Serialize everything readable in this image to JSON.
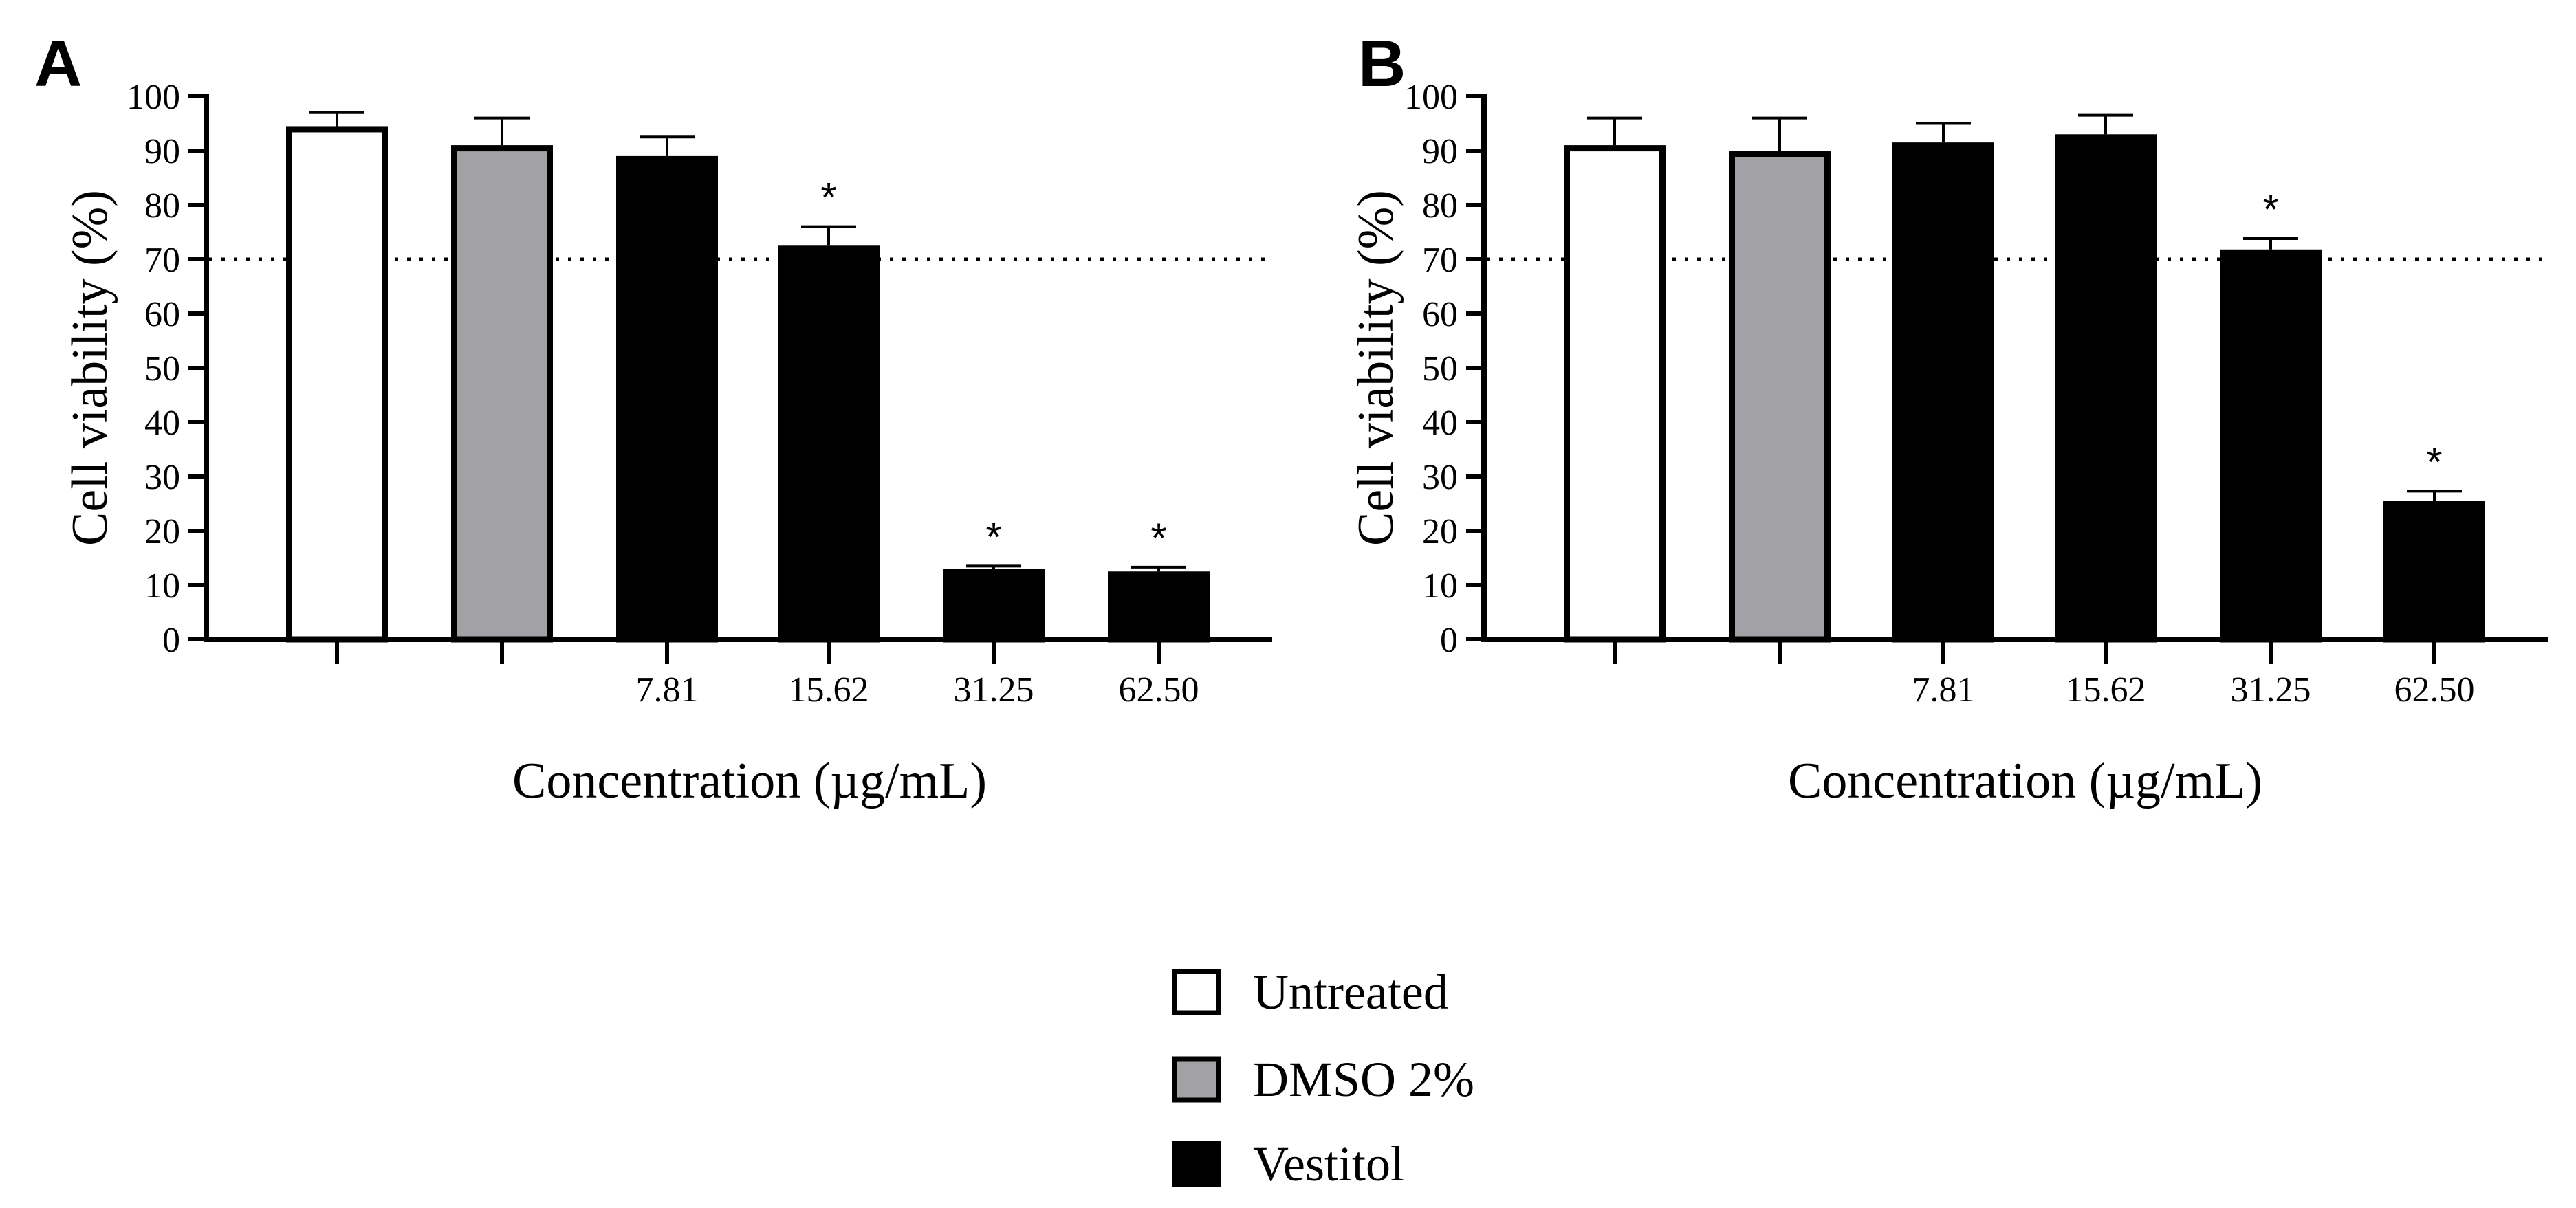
{
  "chart_data": [
    {
      "type": "bar",
      "panel": "A",
      "title": "",
      "xlabel": "Concentration (µg/mL)",
      "ylabel": "Cell viability (%)",
      "ylim": [
        0,
        100
      ],
      "yticks": [
        0,
        10,
        20,
        30,
        40,
        50,
        60,
        70,
        80,
        90,
        100
      ],
      "reference_line": 70,
      "categories": [
        "",
        "",
        "7.81",
        "15.62",
        "31.25",
        "62.50"
      ],
      "groups": [
        "Untreated",
        "DMSO 2%",
        "Vestitol",
        "Vestitol",
        "Vestitol",
        "Vestitol"
      ],
      "values": [
        94.5,
        91,
        89,
        72.5,
        13,
        12.5
      ],
      "errors": [
        2.5,
        5,
        3.5,
        3.5,
        0.5,
        0.8
      ],
      "significance": [
        "",
        "",
        "",
        "*",
        "*",
        "*"
      ]
    },
    {
      "type": "bar",
      "panel": "B",
      "title": "",
      "xlabel": "Concentration (µg/mL)",
      "ylabel": "Cell viability (%)",
      "ylim": [
        0,
        100
      ],
      "yticks": [
        0,
        10,
        20,
        30,
        40,
        50,
        60,
        70,
        80,
        90,
        100
      ],
      "reference_line": 70,
      "categories": [
        "",
        "",
        "7.81",
        "15.62",
        "31.25",
        "62.50"
      ],
      "groups": [
        "Untreated",
        "DMSO 2%",
        "Vestitol",
        "Vestitol",
        "Vestitol",
        "Vestitol"
      ],
      "values": [
        91,
        90,
        91.5,
        93,
        71.8,
        25.5
      ],
      "errors": [
        5,
        6,
        3.5,
        3.5,
        2,
        1.8
      ],
      "significance": [
        "",
        "",
        "",
        "",
        "*",
        "*"
      ]
    }
  ],
  "legend": {
    "placement": "bottom-center",
    "items": [
      {
        "key": "Untreated",
        "label": "Untreated",
        "fill": "#ffffff"
      },
      {
        "key": "DMSO 2%",
        "label": "DMSO 2%",
        "fill": "#a2a2a6"
      },
      {
        "key": "Vestitol",
        "label": "Vestitol",
        "fill": "#000000"
      }
    ]
  },
  "colors": {
    "Untreated": "#ffffff",
    "DMSO 2%": "#a2a2a6",
    "Vestitol": "#000000",
    "stroke": "#000000"
  }
}
